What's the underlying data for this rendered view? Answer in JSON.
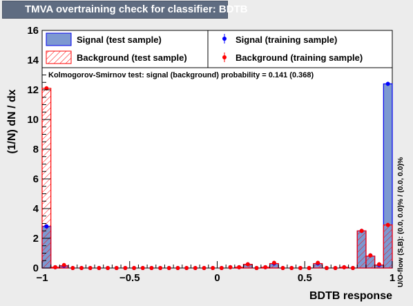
{
  "title": "TMVA overtraining check for classifier: BDTB",
  "legend": {
    "signal_test": "Signal (test sample)",
    "background_test": "Background (test sample)",
    "signal_train": "Signal (training sample)",
    "background_train": "Background (training sample)"
  },
  "ks_text": "Kolmogorov-Smirnov test: signal (background) probability = 0.141 (0.368)",
  "overflow_text": "U/O-flow (S,B): (0.0, 0.0)% / (0.0, 0.0)%",
  "colors": {
    "signal_fill": "#7d99d1",
    "signal_line": "#0000ee",
    "background_line": "#ff0000",
    "signal_marker": "#0000ff",
    "background_marker": "#ff0000",
    "title_bg": "#5f6c81"
  },
  "chart_data": {
    "type": "bar",
    "xlabel": "BDTB response",
    "ylabel": "(1/N) dN / dx",
    "xlim": [
      -1,
      1
    ],
    "ylim": [
      0,
      16
    ],
    "x_ticks": [
      "−1",
      "−0.5",
      "0",
      "0.5",
      "1"
    ],
    "x_tick_values": [
      -1,
      -0.5,
      0,
      0.5,
      1
    ],
    "y_ticks": [
      "0",
      "2",
      "4",
      "6",
      "8",
      "10",
      "12",
      "14",
      "16"
    ],
    "y_tick_values": [
      0,
      2,
      4,
      6,
      8,
      10,
      12,
      14,
      16
    ],
    "bins": 40,
    "series": [
      {
        "name": "Signal (test sample)",
        "values": [
          2.8,
          0.05,
          0.15,
          0,
          0,
          0,
          0,
          0,
          0,
          0,
          0,
          0,
          0,
          0,
          0,
          0,
          0,
          0,
          0,
          0,
          0,
          0,
          0.05,
          0.25,
          0,
          0.05,
          0.3,
          0,
          0,
          0,
          0,
          0.3,
          0,
          0,
          0.05,
          0,
          2.5,
          0.8,
          0.2,
          12.4
        ]
      },
      {
        "name": "Background (test sample)",
        "values": [
          12.1,
          0.05,
          0.15,
          0,
          0,
          0,
          0,
          0,
          0,
          0,
          0,
          0,
          0,
          0,
          0,
          0,
          0,
          0,
          0,
          0,
          0,
          0,
          0.05,
          0.25,
          0,
          0.05,
          0.3,
          0,
          0,
          0,
          0,
          0.3,
          0,
          0,
          0.05,
          0,
          2.5,
          0.8,
          0.2,
          2.9
        ]
      },
      {
        "name": "Signal (training sample)",
        "values": [
          2.8,
          0.05,
          0.15,
          0,
          0,
          0,
          0,
          0,
          0,
          0,
          0,
          0,
          0,
          0,
          0,
          0,
          0,
          0,
          0,
          0,
          0,
          0.05,
          0.05,
          0.25,
          0,
          0.05,
          0.3,
          0,
          0,
          0,
          0,
          0.3,
          0,
          0,
          0.05,
          0,
          2.5,
          0.85,
          0.2,
          12.4
        ]
      },
      {
        "name": "Background (training sample)",
        "values": [
          12.1,
          0.05,
          0.2,
          0,
          0,
          0,
          0,
          0,
          0,
          0,
          0,
          0,
          0,
          0,
          0,
          0,
          0,
          0,
          0,
          0,
          0,
          0.05,
          0.05,
          0.25,
          0,
          0.05,
          0.35,
          0,
          0,
          0,
          0,
          0.35,
          0,
          0,
          0.05,
          0,
          2.5,
          0.85,
          0.25,
          2.9
        ]
      }
    ]
  }
}
